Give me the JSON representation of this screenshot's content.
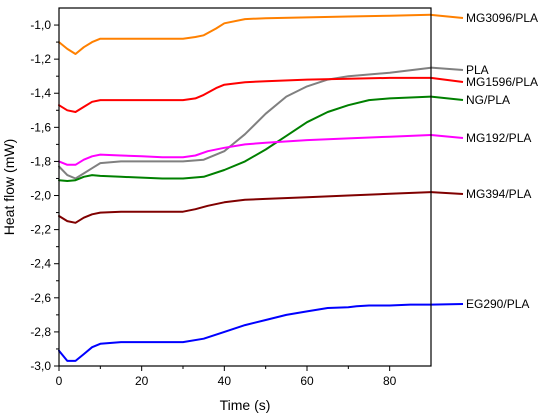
{
  "chart_data": {
    "type": "line",
    "title": "",
    "xlabel": "Time (s)",
    "ylabel": "Heat flow (mW)",
    "xlim": [
      0,
      90
    ],
    "ylim": [
      -3.0,
      -0.9
    ],
    "x_ticks": [
      0,
      20,
      40,
      60,
      80
    ],
    "x_tick_labels": [
      "0",
      "20",
      "40",
      "60",
      "80"
    ],
    "y_ticks": [
      -3.0,
      -2.8,
      -2.6,
      -2.4,
      -2.2,
      -2.0,
      -1.8,
      -1.6,
      -1.4,
      -1.2,
      -1.0
    ],
    "y_tick_labels": [
      "-3,0",
      "-2,8",
      "-2,6",
      "-2,4",
      "-2,2",
      "-2,0",
      "-1,8",
      "-1,6",
      "-1,4",
      "-1,2",
      "-1,0"
    ],
    "grid": false,
    "legend_placement": "right, outside plot, labels at curve ends",
    "series": [
      {
        "name": "MG3096/PLA",
        "color": "#ff8000",
        "x": [
          0,
          2,
          4,
          6,
          8,
          10,
          15,
          20,
          25,
          30,
          33,
          35,
          38,
          40,
          45,
          50,
          60,
          70,
          80,
          90
        ],
        "y": [
          -1.1,
          -1.14,
          -1.17,
          -1.13,
          -1.1,
          -1.08,
          -1.08,
          -1.08,
          -1.08,
          -1.08,
          -1.07,
          -1.06,
          -1.02,
          -0.99,
          -0.965,
          -0.96,
          -0.955,
          -0.95,
          -0.945,
          -0.94
        ]
      },
      {
        "name": "PLA",
        "color": "#808080",
        "x": [
          0,
          2,
          4,
          6,
          8,
          10,
          15,
          20,
          25,
          30,
          35,
          40,
          42,
          45,
          50,
          55,
          60,
          65,
          70,
          80,
          90
        ],
        "y": [
          -1.83,
          -1.88,
          -1.9,
          -1.87,
          -1.84,
          -1.81,
          -1.8,
          -1.8,
          -1.8,
          -1.8,
          -1.79,
          -1.74,
          -1.7,
          -1.64,
          -1.52,
          -1.42,
          -1.36,
          -1.32,
          -1.3,
          -1.28,
          -1.25
        ]
      },
      {
        "name": "MG1596/PLA",
        "color": "#ff0000",
        "x": [
          0,
          2,
          4,
          6,
          8,
          10,
          15,
          20,
          25,
          30,
          33,
          35,
          38,
          40,
          45,
          50,
          60,
          70,
          80,
          90
        ],
        "y": [
          -1.47,
          -1.5,
          -1.51,
          -1.48,
          -1.45,
          -1.44,
          -1.44,
          -1.44,
          -1.44,
          -1.44,
          -1.43,
          -1.41,
          -1.37,
          -1.35,
          -1.335,
          -1.33,
          -1.32,
          -1.315,
          -1.31,
          -1.31
        ]
      },
      {
        "name": "NG/PLA",
        "color": "#008000",
        "x": [
          0,
          2,
          4,
          6,
          8,
          10,
          15,
          20,
          25,
          30,
          35,
          40,
          45,
          50,
          55,
          60,
          65,
          70,
          75,
          80,
          90
        ],
        "y": [
          -1.91,
          -1.915,
          -1.91,
          -1.89,
          -1.88,
          -1.885,
          -1.89,
          -1.895,
          -1.9,
          -1.9,
          -1.89,
          -1.85,
          -1.8,
          -1.73,
          -1.65,
          -1.57,
          -1.51,
          -1.47,
          -1.44,
          -1.43,
          -1.42
        ]
      },
      {
        "name": "MG192/PLA",
        "color": "#ff00ff",
        "x": [
          0,
          2,
          4,
          6,
          8,
          10,
          15,
          20,
          25,
          30,
          33,
          36,
          40,
          45,
          50,
          60,
          70,
          80,
          90
        ],
        "y": [
          -1.8,
          -1.82,
          -1.82,
          -1.79,
          -1.77,
          -1.76,
          -1.765,
          -1.77,
          -1.775,
          -1.775,
          -1.765,
          -1.74,
          -1.72,
          -1.7,
          -1.69,
          -1.675,
          -1.665,
          -1.655,
          -1.645
        ]
      },
      {
        "name": "MG394/PLA",
        "color": "#800000",
        "x": [
          0,
          2,
          4,
          6,
          8,
          10,
          15,
          20,
          25,
          30,
          33,
          36,
          40,
          45,
          50,
          60,
          70,
          80,
          90
        ],
        "y": [
          -2.12,
          -2.15,
          -2.16,
          -2.13,
          -2.11,
          -2.1,
          -2.095,
          -2.095,
          -2.095,
          -2.095,
          -2.08,
          -2.06,
          -2.04,
          -2.025,
          -2.02,
          -2.01,
          -2.0,
          -1.99,
          -1.98
        ]
      },
      {
        "name": "EG290/PLA",
        "color": "#0000ff",
        "x": [
          0,
          2,
          4,
          6,
          8,
          10,
          15,
          20,
          25,
          30,
          35,
          40,
          45,
          50,
          55,
          60,
          65,
          70,
          72,
          75,
          80,
          85,
          90
        ],
        "y": [
          -2.91,
          -2.97,
          -2.97,
          -2.93,
          -2.89,
          -2.87,
          -2.86,
          -2.86,
          -2.86,
          -2.86,
          -2.84,
          -2.8,
          -2.76,
          -2.73,
          -2.7,
          -2.68,
          -2.66,
          -2.655,
          -2.65,
          -2.645,
          -2.645,
          -2.64,
          -2.64
        ]
      }
    ]
  }
}
